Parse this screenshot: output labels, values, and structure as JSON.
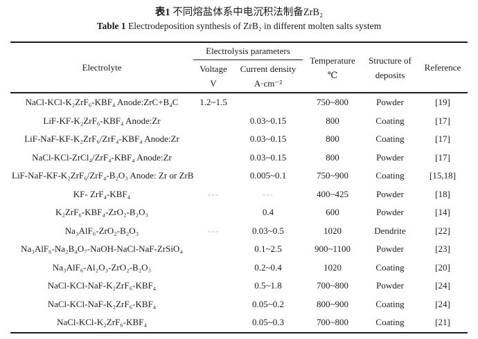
{
  "title": {
    "cn_bold": "表1",
    "cn_rest": " 不同熔盐体系中电沉积法制备ZrB₂",
    "en_bold": "Table 1",
    "en_rest": " Electrodeposition synthesis of ZrB₂ in different molten salts system"
  },
  "table": {
    "headers": {
      "electrolyte": "Electrolyte",
      "electrolysis_group": "Electrolysis parameters",
      "voltage_line1": "Voltage",
      "voltage_line2": "V",
      "current_line1": "Current density",
      "current_line2": "A·cm⁻²",
      "temperature_line1": "Temperature",
      "temperature_line2": "℃",
      "structure_line1": "Structure of",
      "structure_line2": "deposits",
      "reference": "Reference"
    },
    "rows": [
      {
        "electrolyte": "NaCl-KCl-K₂ZrF₆-KBF₄ Anode:ZrC+B₄C",
        "voltage": "1.2~1.5",
        "current_density": "",
        "temperature": "750~800",
        "structure": "Powder",
        "reference": "[19]"
      },
      {
        "electrolyte": "LiF-KF-K₂ZrF₆-KBF₄ Anode:Zr",
        "voltage": "",
        "current_density": "0.03~0.15",
        "temperature": "800",
        "structure": "Coating",
        "reference": "[17]"
      },
      {
        "electrolyte": "LiF-NaF-KF-K₂ZrF₆/ZrF₄-KBF₄ Anode:Zr",
        "voltage": "",
        "current_density": "0.03~0.15",
        "temperature": "800",
        "structure": "Coating",
        "reference": "[17]"
      },
      {
        "electrolyte": "NaCl-KCl-ZrCl₄/ZrF₄-KBF₄ Anode:Zr",
        "voltage": "",
        "current_density": "0.03~0.15",
        "temperature": "800",
        "structure": "Powder",
        "reference": "[17]"
      },
      {
        "electrolyte": "LiF-NaF-KF-K₂ZrF₆/ZrF₄-B₂O₃ Anode: Zr or ZrB₂",
        "voltage": "",
        "current_density": "0.005~0.1",
        "temperature": "750~900",
        "structure": "Coating",
        "reference": "[15,18]"
      },
      {
        "electrolyte": "KF- ZrF₄-KBF₄",
        "voltage": "---",
        "current_density": "---",
        "temperature": "400~425",
        "structure": "Powder",
        "reference": "[18]"
      },
      {
        "electrolyte": "K₂ZrF₆-KBF₄-ZrO₂-B₂O₃",
        "voltage": "",
        "current_density": "0.4",
        "temperature": "600",
        "structure": "Powder",
        "reference": "[14]"
      },
      {
        "electrolyte": "Na₃AlF₆-ZrO₂-B₂O₃",
        "voltage": "---",
        "current_density": "0.03~0.5",
        "temperature": "1020",
        "structure": "Dendrite",
        "reference": "[22]"
      },
      {
        "electrolyte": "Na₃AlF₆-Na₂B₄O₇-NaOH-NaCl-NaF-ZrSiO₄",
        "voltage": "",
        "current_density": "0.1~2.5",
        "temperature": "900~1100",
        "structure": "Powder",
        "reference": "[23]"
      },
      {
        "electrolyte": "Na₃AlF₆-Al₂O₃-ZrO₂-B₂O₃",
        "voltage": "",
        "current_density": "0.2~0.4",
        "temperature": "1020",
        "structure": "Coating",
        "reference": "[20]"
      },
      {
        "electrolyte": "NaCl-KCl-NaF-K₂ZrF₆-KBF₄",
        "voltage": "",
        "current_density": "0.5~1.8",
        "temperature": "700~800",
        "structure": "Powder",
        "reference": "[24]"
      },
      {
        "electrolyte": "NaCl-KCl-NaF-K₂ZrF₆-KBF₄",
        "voltage": "",
        "current_density": "0.05~0.2",
        "temperature": "800~900",
        "structure": "Coating",
        "reference": "[24]"
      },
      {
        "electrolyte": "NaCl-KCl-K₂ZrF₆-KBF₄",
        "voltage": "",
        "current_density": "0.05~0.3",
        "temperature": "700~800",
        "structure": "Coating",
        "reference": "[21]"
      }
    ]
  },
  "colors": {
    "text": "#1a1a1a",
    "rule": "#1a1a1a",
    "dash": "#b4b4bc",
    "background": "#ffffff"
  }
}
